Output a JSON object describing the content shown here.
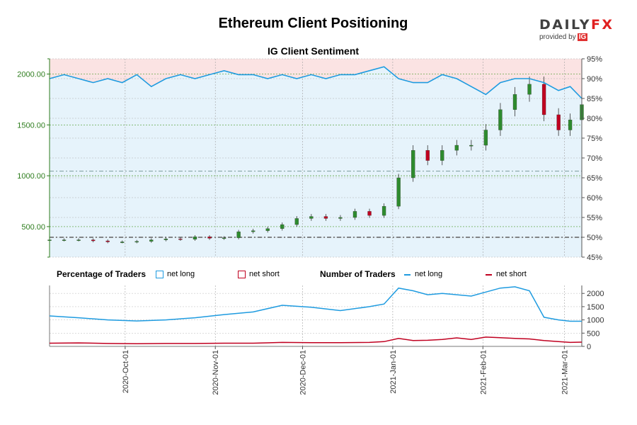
{
  "title": "Ethereum Client Positioning",
  "subtitle": "IG Client Sentiment",
  "logo": {
    "text_main": "DAILY",
    "text_x": "FX",
    "text_sub": "provided by",
    "text_ig": "IG"
  },
  "legend": {
    "pct_title": "Percentage of Traders",
    "pct_long": "net long",
    "pct_short": "net short",
    "num_title": "Number of Traders",
    "num_long": "net long",
    "num_short": "net short"
  },
  "colors": {
    "long": "#1e9be0",
    "short": "#c00020",
    "long_fill": "#e6f3fb",
    "short_fill": "#fbe3e3",
    "candle_up": "#2e8b2e",
    "candle_down": "#c00020",
    "axis_green": "#2e7d1e"
  },
  "chart_data": [
    {
      "type": "line",
      "title": "IG Client Sentiment",
      "x_ticks": [
        "2020-Oct-01",
        "2020-Nov-01",
        "2020-Dec-01",
        "2021-Jan-01",
        "2021-Feb-01",
        "2021-Mar-01"
      ],
      "x_range": [
        "2020-09-05",
        "2021-03-07"
      ],
      "price_axis": {
        "ticks": [
          "500.00",
          "1000.00",
          "1500.00",
          "2000.00"
        ],
        "range": [
          200,
          2150
        ]
      },
      "sentiment_axis": {
        "ticks": [
          "45%",
          "50%",
          "55%",
          "60%",
          "65%",
          "70%",
          "75%",
          "80%",
          "85%",
          "90%",
          "95%"
        ],
        "range": [
          45,
          95
        ]
      },
      "reference_lines": [
        {
          "axis": "sentiment",
          "value": 50
        },
        {
          "axis": "price",
          "value": 1045
        }
      ],
      "series": [
        {
          "name": "net long",
          "axis": "sentiment",
          "x": [
            "2020-09-05",
            "2020-09-10",
            "2020-09-15",
            "2020-09-20",
            "2020-09-25",
            "2020-09-30",
            "2020-10-05",
            "2020-10-10",
            "2020-10-15",
            "2020-10-20",
            "2020-10-25",
            "2020-10-30",
            "2020-11-04",
            "2020-11-09",
            "2020-11-14",
            "2020-11-19",
            "2020-11-24",
            "2020-11-29",
            "2020-12-04",
            "2020-12-09",
            "2020-12-14",
            "2020-12-19",
            "2020-12-24",
            "2020-12-29",
            "2021-01-03",
            "2021-01-08",
            "2021-01-13",
            "2021-01-18",
            "2021-01-23",
            "2021-01-28",
            "2021-02-02",
            "2021-02-07",
            "2021-02-12",
            "2021-02-17",
            "2021-02-22",
            "2021-02-27",
            "2021-03-03",
            "2021-03-07"
          ],
          "values": [
            90,
            91,
            90,
            89,
            90,
            89,
            91,
            88,
            90,
            91,
            90,
            91,
            92,
            91,
            91,
            90,
            91,
            90,
            91,
            90,
            91,
            91,
            92,
            93,
            90,
            89,
            89,
            91,
            90,
            88,
            86,
            89,
            90,
            90,
            89,
            87,
            88,
            85
          ]
        },
        {
          "name": "ETH price",
          "axis": "price",
          "kind": "candlestick",
          "x": [
            "2020-09-05",
            "2020-09-10",
            "2020-09-15",
            "2020-09-20",
            "2020-09-25",
            "2020-09-30",
            "2020-10-05",
            "2020-10-10",
            "2020-10-15",
            "2020-10-20",
            "2020-10-25",
            "2020-10-30",
            "2020-11-04",
            "2020-11-09",
            "2020-11-14",
            "2020-11-19",
            "2020-11-24",
            "2020-11-29",
            "2020-12-04",
            "2020-12-09",
            "2020-12-14",
            "2020-12-19",
            "2020-12-24",
            "2020-12-29",
            "2021-01-03",
            "2021-01-08",
            "2021-01-13",
            "2021-01-18",
            "2021-01-23",
            "2021-01-28",
            "2021-02-02",
            "2021-02-07",
            "2021-02-12",
            "2021-02-17",
            "2021-02-22",
            "2021-02-27",
            "2021-03-03",
            "2021-03-07"
          ],
          "values": [
            370,
            370,
            370,
            360,
            350,
            350,
            355,
            370,
            380,
            375,
            400,
            385,
            390,
            450,
            460,
            480,
            520,
            580,
            600,
            580,
            590,
            650,
            610,
            700,
            980,
            1250,
            1150,
            1250,
            1300,
            1300,
            1450,
            1650,
            1800,
            1900,
            1600,
            1450,
            1550,
            1700
          ]
        }
      ]
    },
    {
      "type": "line",
      "title": "Number of Traders",
      "x_ticks": [
        "2020-Oct-01",
        "2020-Nov-01",
        "2020-Dec-01",
        "2021-Jan-01",
        "2021-Feb-01",
        "2021-Mar-01"
      ],
      "y_ticks": [
        "0",
        "500",
        "1000",
        "1500",
        "2000"
      ],
      "ylim": [
        0,
        2300
      ],
      "series": [
        {
          "name": "net long",
          "x": [
            "2020-09-05",
            "2020-09-15",
            "2020-09-25",
            "2020-10-05",
            "2020-10-15",
            "2020-10-25",
            "2020-11-04",
            "2020-11-14",
            "2020-11-24",
            "2020-12-04",
            "2020-12-14",
            "2020-12-24",
            "2020-12-29",
            "2021-01-03",
            "2021-01-08",
            "2021-01-13",
            "2021-01-18",
            "2021-01-23",
            "2021-01-28",
            "2021-02-02",
            "2021-02-07",
            "2021-02-12",
            "2021-02-17",
            "2021-02-22",
            "2021-02-27",
            "2021-03-03",
            "2021-03-07"
          ],
          "values": [
            1150,
            1080,
            1000,
            960,
            1000,
            1080,
            1200,
            1300,
            1550,
            1480,
            1350,
            1500,
            1600,
            2200,
            2100,
            1950,
            2000,
            1950,
            1900,
            2050,
            2200,
            2250,
            2100,
            1100,
            1000,
            950,
            950
          ]
        },
        {
          "name": "net short",
          "x": [
            "2020-09-05",
            "2020-09-15",
            "2020-09-25",
            "2020-10-05",
            "2020-10-15",
            "2020-10-25",
            "2020-11-04",
            "2020-11-14",
            "2020-11-24",
            "2020-12-04",
            "2020-12-14",
            "2020-12-24",
            "2020-12-29",
            "2021-01-03",
            "2021-01-08",
            "2021-01-13",
            "2021-01-18",
            "2021-01-23",
            "2021-01-28",
            "2021-02-02",
            "2021-02-07",
            "2021-02-12",
            "2021-02-17",
            "2021-02-22",
            "2021-02-27",
            "2021-03-03",
            "2021-03-07"
          ],
          "values": [
            120,
            130,
            110,
            100,
            110,
            110,
            120,
            120,
            150,
            140,
            140,
            150,
            180,
            300,
            220,
            230,
            260,
            320,
            260,
            350,
            330,
            300,
            280,
            220,
            180,
            150,
            160
          ]
        }
      ]
    }
  ]
}
